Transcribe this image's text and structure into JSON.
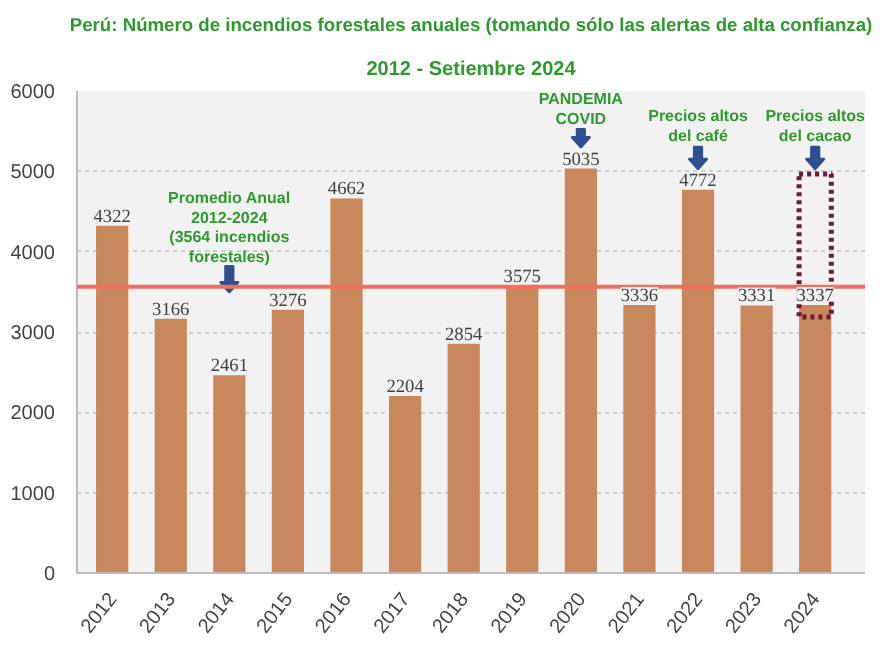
{
  "chart_data": {
    "type": "bar",
    "title": "Perú: Número de incendios forestales anuales (tomando sólo las alertas de alta confianza)",
    "subtitle": "2012 - Setiembre 2024",
    "categories": [
      "2012",
      "2013",
      "2014",
      "2015",
      "2016",
      "2017",
      "2018",
      "2019",
      "2020",
      "2021",
      "2022",
      "2023",
      "2024"
    ],
    "values": [
      4322,
      3166,
      2461,
      3276,
      4662,
      2204,
      2854,
      3575,
      5035,
      3336,
      4772,
      3331,
      3337
    ],
    "color": "#c8885c",
    "data_labels": true,
    "ylim": [
      0,
      6000
    ],
    "yticks": [
      0,
      1000,
      2000,
      3000,
      4000,
      5000,
      6000
    ],
    "grid": "y",
    "ref_lines": [
      {
        "axis": "y",
        "value": 3564,
        "color": "#f07060"
      }
    ],
    "annotations": [
      "Promedio Anual\n2012-2024\n(3564 incendios\nforestales)",
      "PANDEMIA\nCOVID",
      "Precios altos\ndel café",
      "Precios altos\ndel cacao"
    ]
  }
}
